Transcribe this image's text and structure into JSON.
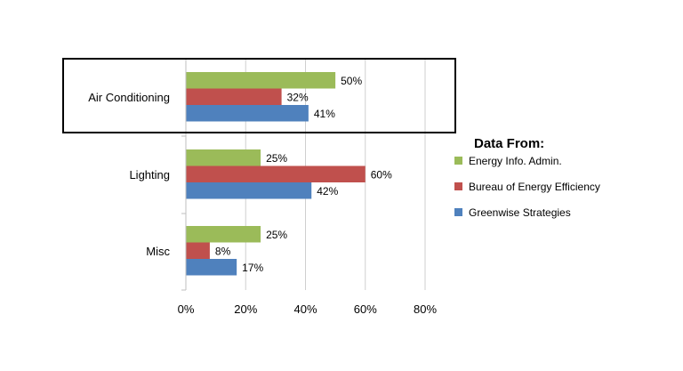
{
  "chart_data": {
    "type": "bar",
    "orientation": "horizontal",
    "categories": [
      "Air Conditioning",
      "Lighting",
      "Misc"
    ],
    "series": [
      {
        "name": "Energy Info. Admin.",
        "color": "#9bbb59",
        "values": [
          50,
          25,
          25
        ]
      },
      {
        "name": "Bureau of Energy Efficiency",
        "color": "#c0504d",
        "values": [
          32,
          60,
          8
        ]
      },
      {
        "name": "Greenwise Strategies",
        "color": "#4f81bd",
        "values": [
          41,
          42,
          17
        ]
      }
    ],
    "data_labels": [
      [
        "50%",
        "32%",
        "41%"
      ],
      [
        "25%",
        "60%",
        "42%"
      ],
      [
        "25%",
        "8%",
        "17%"
      ]
    ],
    "x_ticks": [
      "0%",
      "20%",
      "40%",
      "60%",
      "80%"
    ],
    "xlim": [
      0,
      80
    ],
    "grid": true,
    "highlighted_category": "Air Conditioning",
    "legend": {
      "title": "Data From:",
      "position": "right"
    }
  }
}
